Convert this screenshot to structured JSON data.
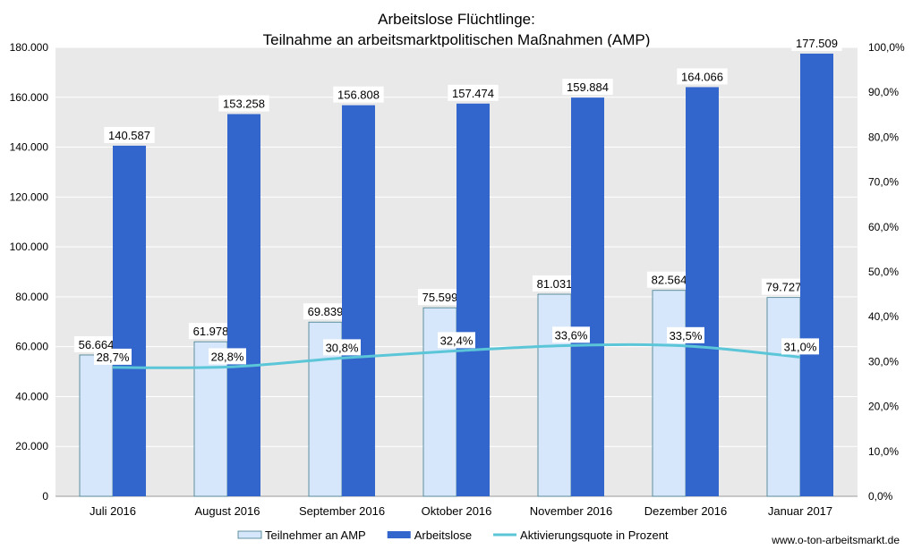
{
  "chart_data": {
    "type": "bar",
    "title_line1": "Arbeitslose Flüchtlinge:",
    "title_line2": "Teilnahme an arbeitsmarktpolitischen Maßnahmen (AMP)",
    "categories": [
      "Juli 2016",
      "August 2016",
      "September 2016",
      "Oktober 2016",
      "November 2016",
      "Dezember 2016",
      "Januar 2017"
    ],
    "series": [
      {
        "name": "Teilnehmer an AMP",
        "axis": "left",
        "kind": "bar",
        "color": "#d6e6fb",
        "values": [
          56664,
          61978,
          69839,
          75599,
          81031,
          82564,
          79727
        ],
        "labels": [
          "56.664",
          "61.978",
          "69.839",
          "75.599",
          "81.031",
          "82.564",
          "79.727"
        ]
      },
      {
        "name": "Arbeitslose",
        "axis": "left",
        "kind": "bar",
        "color": "#3366cc",
        "values": [
          140587,
          153258,
          156808,
          157474,
          159884,
          164066,
          177509
        ],
        "labels": [
          "140.587",
          "153.258",
          "156.808",
          "157.474",
          "159.884",
          "164.066",
          "177.509"
        ]
      },
      {
        "name": "Aktivierungsquote in Prozent",
        "axis": "right",
        "kind": "line",
        "color": "#5bc6d8",
        "values": [
          28.7,
          28.8,
          30.8,
          32.4,
          33.6,
          33.5,
          31.0
        ],
        "labels": [
          "28,7%",
          "28,8%",
          "30,8%",
          "32,4%",
          "33,6%",
          "33,5%",
          "31,0%"
        ]
      }
    ],
    "y_left": {
      "ylim": [
        0,
        180000
      ],
      "ticks": [
        0,
        20000,
        40000,
        60000,
        80000,
        100000,
        120000,
        140000,
        160000,
        180000
      ],
      "tick_labels": [
        "0",
        "20.000",
        "40.000",
        "60.000",
        "80.000",
        "100.000",
        "120.000",
        "140.000",
        "160.000",
        "180.000"
      ]
    },
    "y_right": {
      "ylim": [
        0,
        100
      ],
      "ticks": [
        0,
        10,
        20,
        30,
        40,
        50,
        60,
        70,
        80,
        90,
        100
      ],
      "tick_labels": [
        "0,0%",
        "10,0%",
        "20,0%",
        "30,0%",
        "40,0%",
        "50,0%",
        "60,0%",
        "70,0%",
        "80,0%",
        "90,0%",
        "100,0%"
      ]
    },
    "grid": true,
    "legend_position": "bottom",
    "source_note": "www.o-ton-arbeitsmarkt.de"
  },
  "colors": {
    "plot_background": "#e9e9e9",
    "gridline": "#ffffff"
  }
}
